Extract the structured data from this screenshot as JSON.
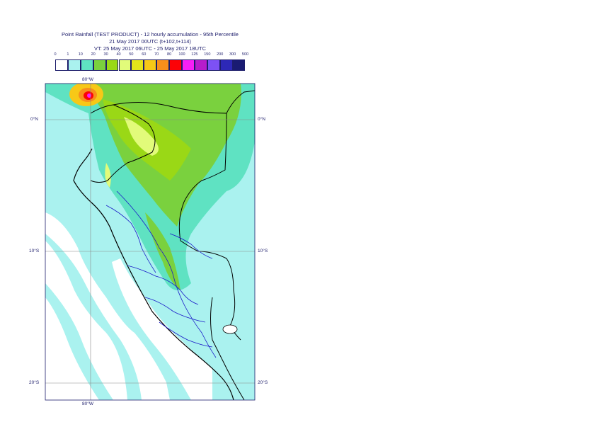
{
  "title": {
    "line1": "Point Rainfall (TEST PRODUCT) - 12 hourly accumulation - 95th Percentile",
    "line2": "21 May 2017 00UTC (t+102,t+114)",
    "line3": "VT: 25 May 2017 06UTC - 25 May 2017 18UTC"
  },
  "legend": {
    "ticks": [
      "0",
      "1",
      "10",
      "20",
      "30",
      "40",
      "50",
      "60",
      "70",
      "80",
      "100",
      "125",
      "150",
      "200",
      "300",
      "500"
    ],
    "colors": [
      "#ffffff",
      "#aaf2ef",
      "#5fe2c2",
      "#7ad13e",
      "#9ad816",
      "#e2fb7a",
      "#e3e41b",
      "#f7c817",
      "#f88f1b",
      "#fc0207",
      "#f71ff6",
      "#b71ccb",
      "#7d51f4",
      "#2d28b7",
      "#1a1b73"
    ]
  },
  "grid_labels": {
    "lon_top": "80°W",
    "lon_bottom": "80°W",
    "lat_0_left": "0°N",
    "lat_0_right": "0°N",
    "lat_10_left": "10°S",
    "lat_10_right": "10°S",
    "lat_20_left": "20°S",
    "lat_20_right": "20°S"
  },
  "colors": {
    "ocean": "#aaf2ef",
    "coast_dry": "#ffffff",
    "country_border": "#000000",
    "region_border": "#1a1ac8",
    "text": "#1d1d6b"
  }
}
